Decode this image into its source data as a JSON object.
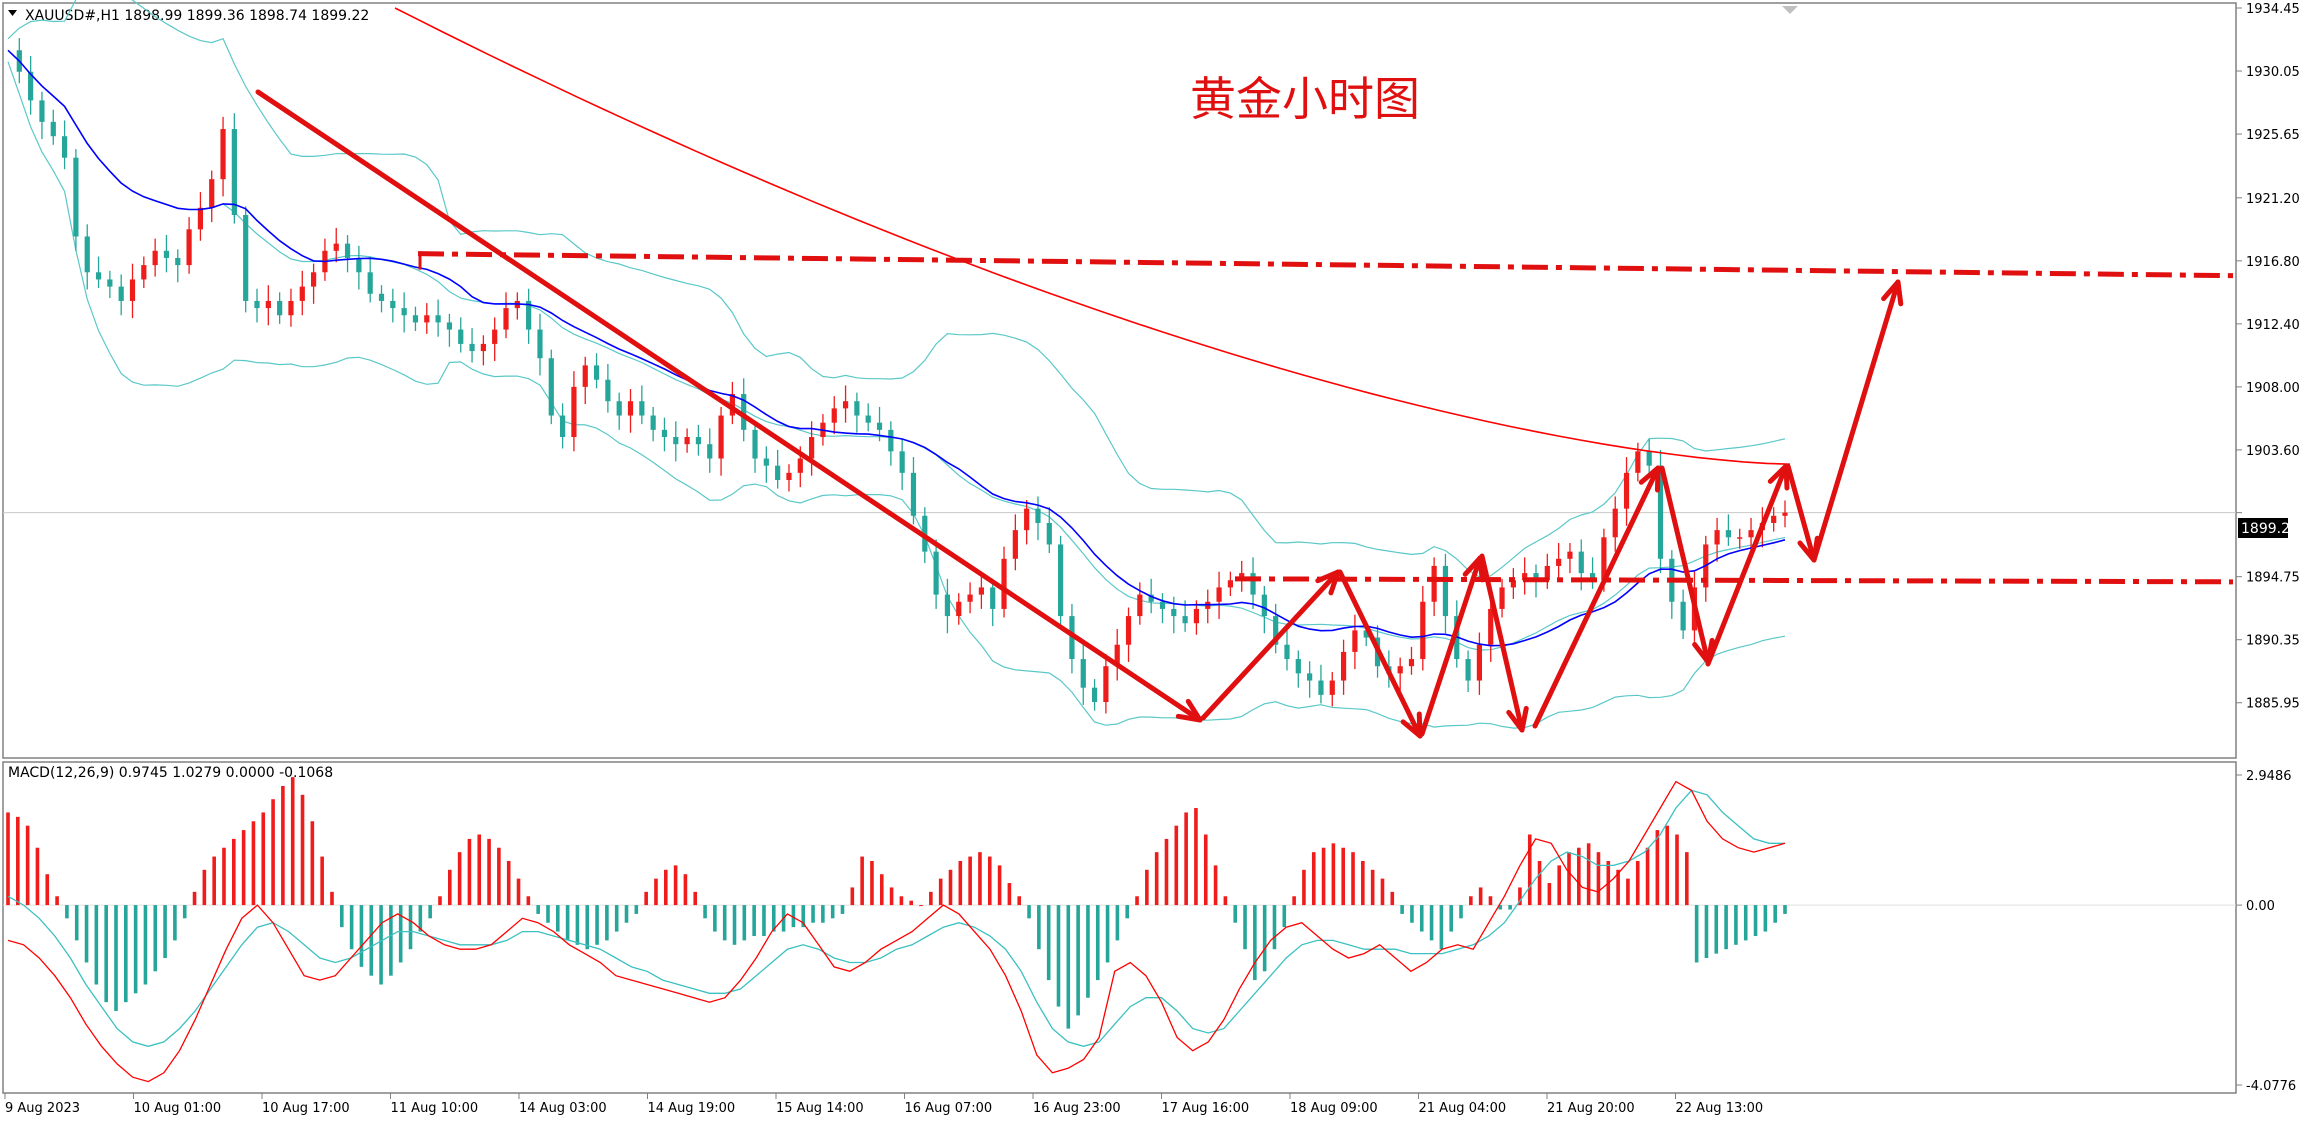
{
  "symbol_header": "XAUUSD#,H1  1898.99 1899.36 1898.74 1899.22",
  "annotation_title": "黄金小时图",
  "current_price_label": "1899.22",
  "colors": {
    "background": "#ffffff",
    "bull": "#ef1c1c",
    "bear": "#26a69a",
    "ma_blue": "#0000ff",
    "ma_red": "#ff0000",
    "bollinger": "#5bc8c8",
    "macd_line": "#ff0000",
    "signal_line": "#3cc0c0",
    "annotation": "#e01010",
    "grid": "#c8c8c8"
  },
  "chart_data": [
    {
      "type": "candlestick",
      "title": "XAUUSD#,H1",
      "ylim": [
        1883.0,
        1934.45
      ],
      "price_ticks": [
        "1934.45",
        "1930.05",
        "1925.65",
        "1921.20",
        "1916.80",
        "1912.40",
        "1908.00",
        "1903.60",
        "1899.22",
        "1894.75",
        "1890.35",
        "1885.95"
      ],
      "time_ticks": [
        "9 Aug 2023",
        "10 Aug 01:00",
        "10 Aug 17:00",
        "11 Aug 10:00",
        "14 Aug 03:00",
        "14 Aug 19:00",
        "15 Aug 14:00",
        "16 Aug 07:00",
        "16 Aug 23:00",
        "17 Aug 16:00",
        "18 Aug 09:00",
        "21 Aug 04:00",
        "21 Aug 20:00",
        "22 Aug 13:00"
      ],
      "close_path": [
        1931.5,
        1930.0,
        1928.0,
        1926.5,
        1925.5,
        1924.0,
        1918.5,
        1916.0,
        1915.5,
        1915.0,
        1914.0,
        1915.5,
        1916.5,
        1917.5,
        1917.0,
        1916.5,
        1919.0,
        1920.5,
        1922.5,
        1926.0,
        1920.0,
        1914.0,
        1913.5,
        1914.0,
        1913.0,
        1914.0,
        1915.0,
        1916.0,
        1917.5,
        1918.0,
        1917.0,
        1916.0,
        1914.5,
        1914.0,
        1913.5,
        1913.0,
        1912.5,
        1913.0,
        1912.5,
        1912.0,
        1911.0,
        1910.5,
        1911.0,
        1912.0,
        1913.5,
        1914.0,
        1912.0,
        1910.0,
        1906.0,
        1904.5,
        1908.0,
        1909.5,
        1908.5,
        1907.0,
        1906.0,
        1907.0,
        1906.0,
        1905.0,
        1904.5,
        1904.0,
        1904.5,
        1904.0,
        1903.0,
        1906.0,
        1907.5,
        1905.0,
        1903.0,
        1902.5,
        1901.5,
        1902.0,
        1903.0,
        1904.5,
        1905.5,
        1906.5,
        1907.0,
        1906.0,
        1905.5,
        1905.0,
        1903.5,
        1902.0,
        1899.0,
        1896.5,
        1893.5,
        1892.0,
        1893.0,
        1893.5,
        1894.0,
        1892.5,
        1896.0,
        1898.0,
        1899.5,
        1898.5,
        1897.0,
        1892.0,
        1889.0,
        1887.0,
        1886.0,
        1888.5,
        1890.0,
        1892.0,
        1893.5,
        1893.0,
        1892.5,
        1892.0,
        1891.5,
        1892.5,
        1893.0,
        1894.0,
        1894.5,
        1895.0,
        1893.5,
        1892.0,
        1890.0,
        1889.0,
        1888.0,
        1887.5,
        1886.5,
        1887.5,
        1889.5,
        1891.0,
        1890.5,
        1888.5,
        1888.0,
        1888.5,
        1889.0,
        1893.0,
        1895.5,
        1892.0,
        1889.0,
        1887.5,
        1890.0,
        1892.5,
        1894.0,
        1894.5,
        1895.0,
        1894.5,
        1895.5,
        1896.0,
        1896.5,
        1895.0,
        1894.5,
        1897.5,
        1899.5,
        1902.0,
        1903.5,
        1902.5,
        1896.0,
        1893.0,
        1891.0,
        1894.0,
        1897.0,
        1898.0,
        1897.5,
        1897.5,
        1898.0,
        1898.5,
        1899.0,
        1899.22
      ],
      "overlays": [
        {
          "name": "Moving Average (blue)",
          "color": "#0000ff"
        },
        {
          "name": "Moving Average (red)",
          "color": "#ff0000"
        },
        {
          "name": "Bollinger Bands",
          "color": "#5bc8c8"
        }
      ],
      "levels": [
        {
          "type": "resistance",
          "price": 1917.3,
          "style": "dash-dot"
        },
        {
          "type": "support",
          "price": 1894.6,
          "style": "dash-dot"
        }
      ]
    },
    {
      "type": "bar",
      "title": "MACD(12,26,9) 0.9745 1.0279 0.0000 -0.1068",
      "ylim": [
        -4.0776,
        2.9486
      ],
      "ticks": [
        "2.9486",
        "0.00",
        "-4.0776"
      ],
      "histogram": [
        2.1,
        2.0,
        1.8,
        1.3,
        0.7,
        0.2,
        -0.3,
        -0.8,
        -1.3,
        -1.8,
        -2.2,
        -2.4,
        -2.2,
        -2.0,
        -1.8,
        -1.5,
        -1.2,
        -0.8,
        -0.3,
        0.3,
        0.8,
        1.1,
        1.3,
        1.5,
        1.7,
        1.9,
        2.1,
        2.4,
        2.7,
        2.9,
        2.5,
        1.9,
        1.1,
        0.3,
        -0.5,
        -1.0,
        -1.4,
        -1.6,
        -1.8,
        -1.6,
        -1.3,
        -1.0,
        -0.6,
        -0.3,
        0.2,
        0.8,
        1.2,
        1.5,
        1.6,
        1.5,
        1.3,
        1.0,
        0.6,
        0.2,
        -0.2,
        -0.4,
        -0.6,
        -0.8,
        -0.9,
        -1.0,
        -0.9,
        -0.8,
        -0.6,
        -0.4,
        -0.2,
        0.3,
        0.6,
        0.8,
        0.9,
        0.7,
        0.3,
        -0.3,
        -0.6,
        -0.8,
        -0.9,
        -0.8,
        -0.7,
        -0.7,
        -0.6,
        -0.6,
        -0.5,
        -0.5,
        -0.4,
        -0.4,
        -0.3,
        -0.2,
        0.4,
        1.1,
        1.0,
        0.7,
        0.4,
        0.2,
        0.1,
        0.0,
        0.3,
        0.6,
        0.8,
        1.0,
        1.1,
        1.2,
        1.1,
        0.9,
        0.5,
        0.2,
        -0.3,
        -1.0,
        -1.7,
        -2.3,
        -2.8,
        -2.5,
        -2.1,
        -1.7,
        -1.3,
        -0.8,
        -0.3,
        0.2,
        0.8,
        1.2,
        1.5,
        1.8,
        2.1,
        2.2,
        1.6,
        0.9,
        0.2,
        -0.4,
        -1.0,
        -1.7,
        -1.5,
        -1.0,
        -0.5,
        0.2,
        0.8,
        1.2,
        1.3,
        1.4,
        1.3,
        1.2,
        1.0,
        0.8,
        0.6,
        0.3,
        -0.2,
        -0.4,
        -0.6,
        -0.8,
        -1.0,
        -0.6,
        -0.3,
        0.2,
        0.4,
        0.2,
        -0.1,
        -0.1,
        0.4,
        1.6,
        1.0,
        0.5,
        0.9,
        1.2,
        1.3,
        1.4,
        1.2,
        1.0,
        0.8,
        0.6,
        1.0,
        1.3,
        1.7,
        1.8,
        1.6,
        1.2,
        -1.3,
        -1.2,
        -1.1,
        -1.0,
        -0.9,
        -0.8,
        -0.7,
        -0.6,
        -0.4,
        -0.2
      ],
      "macd_line": [
        -0.8,
        -0.9,
        -1.2,
        -1.6,
        -2.1,
        -2.7,
        -3.2,
        -3.6,
        -3.9,
        -4.0,
        -3.8,
        -3.3,
        -2.6,
        -1.8,
        -1.0,
        -0.3,
        0.0,
        -0.4,
        -1.0,
        -1.6,
        -1.7,
        -1.6,
        -1.2,
        -0.8,
        -0.4,
        -0.2,
        -0.4,
        -0.7,
        -0.9,
        -1.0,
        -1.0,
        -0.9,
        -0.6,
        -0.3,
        -0.4,
        -0.6,
        -0.9,
        -1.1,
        -1.3,
        -1.6,
        -1.7,
        -1.8,
        -1.9,
        -2.0,
        -2.1,
        -2.2,
        -2.1,
        -1.7,
        -1.2,
        -0.6,
        -0.2,
        -0.4,
        -0.9,
        -1.4,
        -1.5,
        -1.3,
        -1.0,
        -0.8,
        -0.6,
        -0.3,
        0.0,
        -0.2,
        -0.6,
        -1.0,
        -1.6,
        -2.4,
        -3.4,
        -3.8,
        -3.7,
        -3.5,
        -3.0,
        -1.5,
        -1.3,
        -1.6,
        -2.2,
        -3.0,
        -3.3,
        -3.1,
        -2.6,
        -1.9,
        -1.3,
        -0.8,
        -0.5,
        -0.4,
        -0.7,
        -1.0,
        -1.2,
        -1.1,
        -0.9,
        -1.2,
        -1.5,
        -1.3,
        -1.0,
        -0.9,
        -1.0,
        -0.4,
        0.2,
        0.9,
        1.5,
        1.4,
        0.8,
        0.4,
        0.3,
        0.6,
        1.0,
        1.6,
        2.2,
        2.8,
        2.6,
        1.9,
        1.5,
        1.3,
        1.2,
        1.3,
        1.4
      ],
      "signal_line": [
        0.2,
        0.0,
        -0.3,
        -0.7,
        -1.2,
        -1.8,
        -2.3,
        -2.8,
        -3.1,
        -3.2,
        -3.1,
        -2.8,
        -2.4,
        -1.9,
        -1.4,
        -0.9,
        -0.5,
        -0.4,
        -0.6,
        -0.9,
        -1.2,
        -1.3,
        -1.2,
        -1.0,
        -0.8,
        -0.6,
        -0.6,
        -0.7,
        -0.8,
        -0.9,
        -0.9,
        -0.9,
        -0.8,
        -0.6,
        -0.6,
        -0.7,
        -0.8,
        -0.9,
        -1.0,
        -1.2,
        -1.4,
        -1.5,
        -1.7,
        -1.8,
        -1.9,
        -2.0,
        -2.0,
        -1.9,
        -1.6,
        -1.3,
        -1.0,
        -0.9,
        -1.0,
        -1.2,
        -1.3,
        -1.3,
        -1.2,
        -1.0,
        -0.9,
        -0.7,
        -0.5,
        -0.4,
        -0.5,
        -0.7,
        -1.0,
        -1.5,
        -2.2,
        -2.8,
        -3.1,
        -3.2,
        -3.1,
        -2.7,
        -2.3,
        -2.1,
        -2.1,
        -2.4,
        -2.8,
        -2.9,
        -2.8,
        -2.4,
        -2.0,
        -1.6,
        -1.2,
        -0.9,
        -0.8,
        -0.8,
        -0.9,
        -1.0,
        -1.0,
        -1.0,
        -1.1,
        -1.1,
        -1.1,
        -1.0,
        -0.9,
        -0.7,
        -0.4,
        0.1,
        0.6,
        1.0,
        1.2,
        1.1,
        0.9,
        0.9,
        1.0,
        1.2,
        1.6,
        2.2,
        2.6,
        2.5,
        2.1,
        1.8,
        1.5,
        1.4,
        1.4
      ]
    }
  ]
}
